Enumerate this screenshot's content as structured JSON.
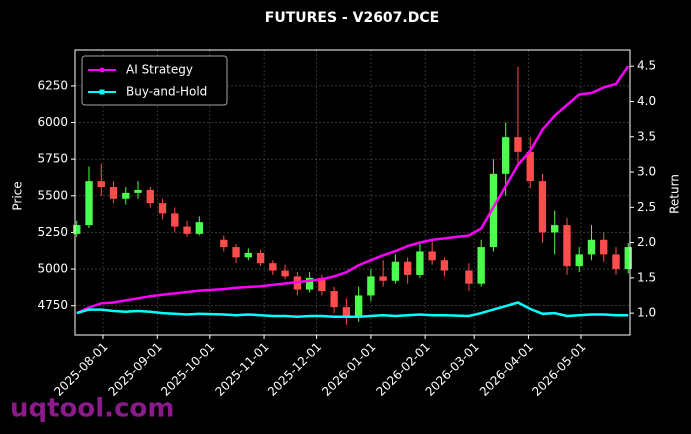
{
  "chart_data": {
    "type": "candlestick",
    "title": "FUTURES - V2607.DCE",
    "ylabel": "Price",
    "y2label": "Return",
    "watermark": "uqtool.com",
    "x": [
      "2025-07-17",
      "2025-07-24",
      "2025-07-31",
      "2025-08-07",
      "2025-08-14",
      "2025-08-21",
      "2025-08-28",
      "2025-09-04",
      "2025-09-11",
      "2025-09-18",
      "2025-09-25",
      "2025-10-09",
      "2025-10-16",
      "2025-10-23",
      "2025-10-30",
      "2025-11-06",
      "2025-11-13",
      "2025-11-20",
      "2025-11-27",
      "2025-12-04",
      "2025-12-11",
      "2025-12-18",
      "2025-12-25",
      "2026-01-01",
      "2026-01-08",
      "2026-01-15",
      "2026-01-22",
      "2026-01-29",
      "2026-02-05",
      "2026-02-12",
      "2026-02-26",
      "2026-03-05",
      "2026-03-12",
      "2026-03-19",
      "2026-03-26",
      "2026-04-02",
      "2026-04-09",
      "2026-04-16",
      "2026-04-23",
      "2026-04-30",
      "2026-05-07",
      "2026-05-14",
      "2026-05-21",
      "2026-05-28"
    ],
    "open": [
      5240,
      5300,
      5600,
      5560,
      5480,
      5520,
      5540,
      5450,
      5380,
      5290,
      5240,
      5200,
      5150,
      5080,
      5110,
      5040,
      4990,
      4950,
      4860,
      4940,
      4850,
      4740,
      4680,
      4820,
      4950,
      4920,
      5050,
      4960,
      5120,
      5060,
      4990,
      4900,
      5150,
      5650,
      5900,
      5800,
      5600,
      5250,
      5300,
      5020,
      5100,
      5200,
      5100,
      5000
    ],
    "high": [
      5330,
      5700,
      5720,
      5600,
      5560,
      5600,
      5560,
      5480,
      5420,
      5330,
      5360,
      5230,
      5170,
      5140,
      5130,
      5060,
      5030,
      4980,
      4980,
      4960,
      4880,
      4800,
      4880,
      5000,
      5060,
      5100,
      5080,
      5180,
      5200,
      5080,
      5040,
      5200,
      5750,
      6000,
      6380,
      5900,
      5650,
      5400,
      5350,
      5150,
      5300,
      5250,
      5150,
      5180
    ],
    "low": [
      5220,
      5280,
      5500,
      5450,
      5440,
      5480,
      5420,
      5340,
      5250,
      5220,
      5230,
      5120,
      5040,
      5060,
      5020,
      4960,
      4930,
      4820,
      4840,
      4820,
      4700,
      4620,
      4640,
      4780,
      4880,
      4900,
      4900,
      4940,
      5030,
      4950,
      4850,
      4880,
      5120,
      5500,
      5700,
      5550,
      5180,
      5100,
      4960,
      4980,
      5060,
      5050,
      4960,
      4970
    ],
    "close": [
      5300,
      5600,
      5560,
      5480,
      5520,
      5540,
      5450,
      5380,
      5290,
      5240,
      5320,
      5150,
      5080,
      5110,
      5040,
      4990,
      4950,
      4860,
      4940,
      4850,
      4740,
      4680,
      4820,
      4950,
      4920,
      5050,
      4960,
      5120,
      5060,
      4990,
      4900,
      5150,
      5650,
      5900,
      5800,
      5600,
      5250,
      5300,
      5020,
      5100,
      5200,
      5100,
      5000,
      5150
    ],
    "up_color": "#4cff4c",
    "down_color": "#ff4c4c",
    "series": [
      {
        "name": "AI Strategy",
        "color": "#ff00ff",
        "axis": "y2",
        "marker": "circle",
        "values": [
          1.0,
          1.08,
          1.14,
          1.15,
          1.18,
          1.21,
          1.24,
          1.26,
          1.28,
          1.3,
          1.32,
          1.34,
          1.36,
          1.37,
          1.38,
          1.4,
          1.42,
          1.44,
          1.46,
          1.48,
          1.52,
          1.58,
          1.68,
          1.75,
          1.82,
          1.88,
          1.95,
          2.0,
          2.04,
          2.06,
          2.1,
          2.2,
          2.5,
          2.8,
          3.1,
          3.3,
          3.6,
          3.8,
          3.95,
          4.1,
          4.12,
          4.2,
          4.25,
          4.5
        ]
      },
      {
        "name": "Buy-and-Hold",
        "color": "#00ffff",
        "axis": "y2",
        "marker": "square",
        "values": [
          1.0,
          1.05,
          1.05,
          1.03,
          1.02,
          1.03,
          1.02,
          1.0,
          0.99,
          0.98,
          0.99,
          0.98,
          0.97,
          0.98,
          0.97,
          0.96,
          0.96,
          0.95,
          0.96,
          0.96,
          0.95,
          0.95,
          0.95,
          0.96,
          0.97,
          0.96,
          0.97,
          0.98,
          0.97,
          0.97,
          0.96,
          1.0,
          1.05,
          1.1,
          1.15,
          1.06,
          0.99,
          1.0,
          0.96,
          0.97,
          0.98,
          0.98,
          0.97,
          0.97
        ]
      }
    ],
    "xlim": [
      "2025-07-16",
      "2026-05-29"
    ],
    "xticks": [
      "2025-08-01",
      "2025-09-01",
      "2025-10-01",
      "2025-11-01",
      "2025-12-01",
      "2026-01-01",
      "2026-02-01",
      "2026-03-01",
      "2026-04-01",
      "2026-05-01"
    ],
    "ylim": [
      4550,
      6495
    ],
    "yticks": [
      4750,
      5000,
      5250,
      5500,
      5750,
      6000,
      6250
    ],
    "y2lim": [
      0.69,
      4.73
    ],
    "y2ticks": [
      {
        "value": 1,
        "label": "1.0"
      },
      1.5,
      {
        "value": 2,
        "label": "2.0"
      },
      2.5,
      {
        "value": 3,
        "label": "3.0"
      },
      3.5,
      {
        "value": 4,
        "label": "4.0"
      },
      4.5
    ],
    "grid": true,
    "legend": "upper left"
  }
}
